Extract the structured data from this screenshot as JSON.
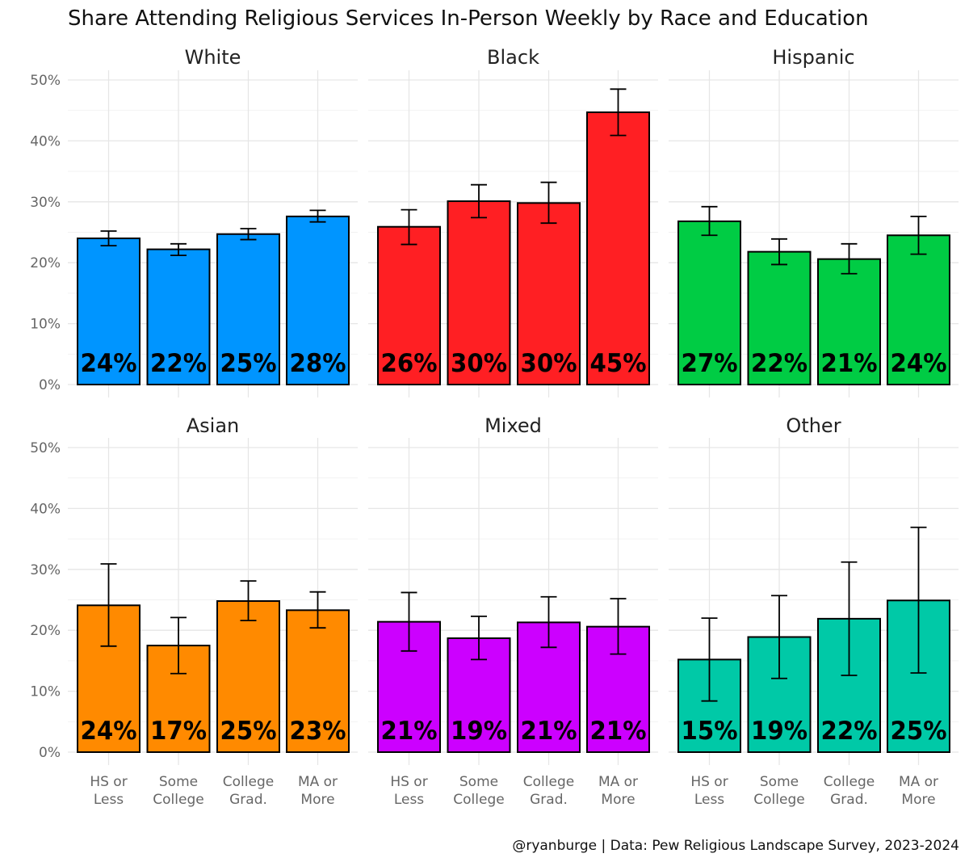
{
  "chart_data": {
    "type": "bar",
    "title": "Share Attending Religious Services In-Person Weekly by Race and Education",
    "caption": "@ryanburge | Data: Pew Religious Landscape Survey, 2023-2024",
    "categories": [
      "HS or Less",
      "Some College",
      "College Grad.",
      "MA or More"
    ],
    "category_lines": [
      [
        "HS or",
        "Less"
      ],
      [
        "Some",
        "College"
      ],
      [
        "College",
        "Grad."
      ],
      [
        "MA or",
        "More"
      ]
    ],
    "ylim": [
      0,
      50
    ],
    "yticks": [
      0,
      10,
      20,
      30,
      40,
      50
    ],
    "ytick_labels": [
      "0%",
      "10%",
      "20%",
      "30%",
      "40%",
      "50%"
    ],
    "grid": true,
    "facets": [
      {
        "name": "White",
        "color": "#0095ff",
        "values": [
          24.0,
          22.2,
          24.7,
          27.6
        ],
        "labels": [
          "24%",
          "22%",
          "25%",
          "28%"
        ],
        "error_low": [
          22.8,
          21.2,
          23.8,
          26.7
        ],
        "error_high": [
          25.2,
          23.1,
          25.6,
          28.6
        ]
      },
      {
        "name": "Black",
        "color": "#ff1f23",
        "values": [
          25.9,
          30.1,
          29.8,
          44.7
        ],
        "labels": [
          "26%",
          "30%",
          "30%",
          "45%"
        ],
        "error_low": [
          23.0,
          27.4,
          26.5,
          40.9
        ],
        "error_high": [
          28.7,
          32.8,
          33.2,
          48.5
        ]
      },
      {
        "name": "Hispanic",
        "color": "#00cc44",
        "values": [
          26.8,
          21.8,
          20.6,
          24.5
        ],
        "labels": [
          "27%",
          "22%",
          "21%",
          "24%"
        ],
        "error_low": [
          24.5,
          19.7,
          18.2,
          21.4
        ],
        "error_high": [
          29.2,
          23.9,
          23.1,
          27.6
        ]
      },
      {
        "name": "Asian",
        "color": "#ff8a00",
        "values": [
          24.1,
          17.5,
          24.8,
          23.3
        ],
        "labels": [
          "24%",
          "17%",
          "25%",
          "23%"
        ],
        "error_low": [
          17.4,
          12.9,
          21.6,
          20.4
        ],
        "error_high": [
          30.9,
          22.1,
          28.1,
          26.3
        ]
      },
      {
        "name": "Mixed",
        "color": "#cc00ff",
        "values": [
          21.4,
          18.7,
          21.3,
          20.6
        ],
        "labels": [
          "21%",
          "19%",
          "21%",
          "21%"
        ],
        "error_low": [
          16.6,
          15.2,
          17.2,
          16.1
        ],
        "error_high": [
          26.2,
          22.3,
          25.5,
          25.2
        ]
      },
      {
        "name": "Other",
        "color": "#00c9a7",
        "values": [
          15.2,
          18.9,
          21.9,
          24.9
        ],
        "labels": [
          "15%",
          "19%",
          "22%",
          "25%"
        ],
        "error_low": [
          8.4,
          12.1,
          12.6,
          13.0
        ],
        "error_high": [
          22.0,
          25.7,
          31.2,
          36.9
        ]
      }
    ]
  }
}
